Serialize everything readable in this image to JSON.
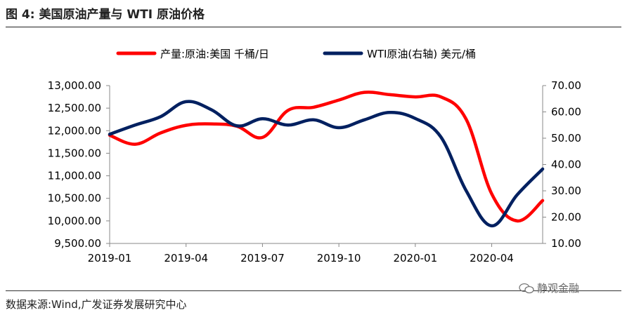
{
  "figure": {
    "title": "图 4:  美国原油产量与 WTI 原油价格",
    "source": "数据来源:Wind,广发证券发展研究中心",
    "watermark": "静观金融"
  },
  "chart_data": {
    "type": "line",
    "x_ticks": [
      "2019-01",
      "2019-04",
      "2019-07",
      "2019-10",
      "2020-01",
      "2020-04"
    ],
    "ylim_left": [
      9500,
      13000
    ],
    "yticks_left": [
      "13,000.00",
      "12,500.00",
      "12,000.00",
      "11,500.00",
      "11,000.00",
      "10,500.00",
      "10,000.00",
      "9,500.00"
    ],
    "ylim_right": [
      10,
      70
    ],
    "yticks_right": [
      "70.00",
      "60.00",
      "50.00",
      "40.00",
      "30.00",
      "20.00",
      "10.00"
    ],
    "legend_position": "top",
    "series": [
      {
        "name": "产量:原油:美国 千桶/日",
        "axis": "left",
        "color": "#ff0000",
        "x": [
          "2019-01",
          "2019-02",
          "2019-03",
          "2019-04",
          "2019-05",
          "2019-06",
          "2019-07",
          "2019-08",
          "2019-09",
          "2019-10",
          "2019-11",
          "2019-12",
          "2020-01",
          "2020-02",
          "2020-03",
          "2020-04",
          "2020-05",
          "2020-06"
        ],
        "values": [
          11900,
          11700,
          11950,
          12120,
          12150,
          12100,
          11850,
          12450,
          12520,
          12680,
          12850,
          12800,
          12750,
          12750,
          12250,
          10600,
          10000,
          10450
        ]
      },
      {
        "name": "WTI原油(右轴) 美元/桶",
        "axis": "right",
        "color": "#002060",
        "x": [
          "2019-01",
          "2019-02",
          "2019-03",
          "2019-04",
          "2019-05",
          "2019-06",
          "2019-07",
          "2019-08",
          "2019-09",
          "2019-10",
          "2019-11",
          "2019-12",
          "2020-01",
          "2020-02",
          "2020-03",
          "2020-04",
          "2020-05",
          "2020-06"
        ],
        "values": [
          51.5,
          55,
          58.2,
          63.9,
          60.8,
          54.7,
          57.4,
          55,
          57,
          54,
          57,
          59.8,
          57.5,
          50.5,
          30,
          16.7,
          28.5,
          38.3
        ]
      }
    ]
  }
}
